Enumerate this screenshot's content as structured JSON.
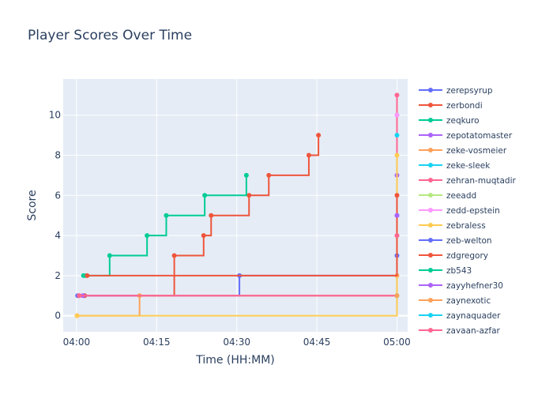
{
  "chart_data": {
    "type": "line",
    "line_shape": "step",
    "title": "Player Scores Over Time",
    "xlabel": "Time (HH:MM)",
    "ylabel": "Score",
    "x_unit": "minutes after 04:00",
    "xlim": [
      -2.5,
      62
    ],
    "ylim": [
      -0.8,
      11.8
    ],
    "x_ticks": [
      0,
      15,
      30,
      45,
      60
    ],
    "x_tick_labels": [
      "04:00",
      "04:15",
      "04:30",
      "04:45",
      "05:00"
    ],
    "y_ticks": [
      0,
      2,
      4,
      6,
      8,
      10
    ],
    "y_tick_labels": [
      "0",
      "2",
      "4",
      "6",
      "8",
      "10"
    ],
    "grid": true,
    "legend_position": "right",
    "plot_bg": "#e5ecf6",
    "series": [
      {
        "name": "zerepsyrup",
        "color": "#636efa",
        "x": [
          0.2,
          1.5,
          30.5,
          60
        ],
        "y": [
          1,
          1,
          2,
          3
        ]
      },
      {
        "name": "zerbondi",
        "color": "#ef553b",
        "x": [
          0.5,
          1.5,
          18.3,
          23.8,
          25.2,
          32.3,
          36,
          43.5,
          45.3
        ],
        "y": [
          1,
          1,
          3,
          4,
          5,
          6,
          7,
          8,
          9
        ]
      },
      {
        "name": "zeqkuro",
        "color": "#00cc96",
        "x": [
          1.3,
          1.8,
          6.2,
          13.2,
          16.8,
          24,
          31.8
        ],
        "y": [
          2,
          2,
          3,
          4,
          5,
          6,
          7
        ]
      },
      {
        "name": "zepotatomaster",
        "color": "#ab63fa",
        "x": [
          1.2,
          60
        ],
        "y": [
          1,
          7
        ]
      },
      {
        "name": "zeke-vosmeier",
        "color": "#ffa15a",
        "x": [
          0.1,
          11.8,
          60
        ],
        "y": [
          0,
          1,
          2
        ]
      },
      {
        "name": "zeke-sleek",
        "color": "#19d3f3",
        "x": [
          60
        ],
        "y": [
          10
        ]
      },
      {
        "name": "zehran-muqtadir",
        "color": "#ff6692",
        "x": [
          0.5,
          60
        ],
        "y": [
          1,
          11
        ]
      },
      {
        "name": "zeeadd",
        "color": "#b6e880",
        "x": [
          60
        ],
        "y": [
          4
        ]
      },
      {
        "name": "zedd-epstein",
        "color": "#ff97ff",
        "x": [
          60
        ],
        "y": [
          10
        ]
      },
      {
        "name": "zebraless",
        "color": "#fecb52",
        "x": [
          0.1,
          60
        ],
        "y": [
          0,
          8
        ]
      },
      {
        "name": "zeb-welton",
        "color": "#636efa",
        "x": [
          60
        ],
        "y": [
          5
        ]
      },
      {
        "name": "zdgregory",
        "color": "#ef553b",
        "x": [
          2.0,
          60
        ],
        "y": [
          2,
          6
        ]
      },
      {
        "name": "zb543",
        "color": "#00cc96",
        "x": [
          60
        ],
        "y": [
          1
        ]
      },
      {
        "name": "zayyhefner30",
        "color": "#ab63fa",
        "x": [
          60
        ],
        "y": [
          5
        ]
      },
      {
        "name": "zaynexotic",
        "color": "#ffa15a",
        "x": [
          60
        ],
        "y": [
          1
        ]
      },
      {
        "name": "zaynaquader",
        "color": "#19d3f3",
        "x": [
          60
        ],
        "y": [
          9
        ]
      },
      {
        "name": "zayaan-azfar",
        "color": "#ff6692",
        "x": [
          60
        ],
        "y": [
          4
        ]
      }
    ]
  }
}
